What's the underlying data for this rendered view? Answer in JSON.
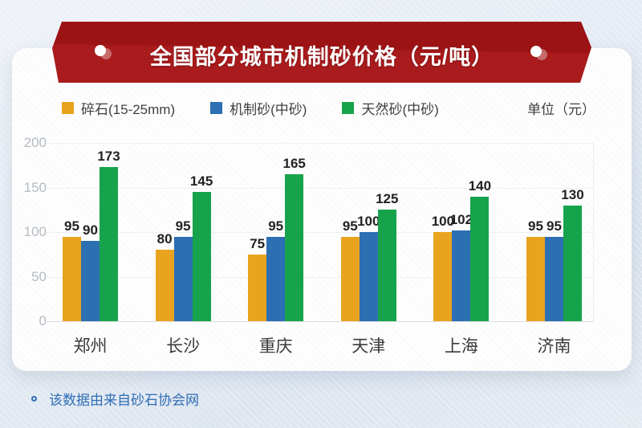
{
  "banner": {
    "title": "全国部分城市机制砂价格（元/吨）"
  },
  "legend": {
    "unit_label": "单位（元）"
  },
  "chart_data": {
    "type": "bar",
    "title": "全国部分城市机制砂价格（元/吨）",
    "categories": [
      "郑州",
      "长沙",
      "重庆",
      "天津",
      "上海",
      "济南"
    ],
    "series": [
      {
        "name": "碎石(15-25mm)",
        "color": "#E8A41F",
        "values": [
          95,
          80,
          75,
          95,
          100,
          95
        ]
      },
      {
        "name": "机制砂(中砂)",
        "color": "#2C6FB2",
        "values": [
          90,
          95,
          95,
          100,
          102,
          95
        ]
      },
      {
        "name": "天然砂(中砂)",
        "color": "#17A34C",
        "values": [
          173,
          145,
          165,
          125,
          140,
          130
        ]
      }
    ],
    "ylim": [
      0,
      200
    ],
    "yticks": [
      0,
      50,
      100,
      150,
      200
    ],
    "unit": "单位（元）",
    "grid": true,
    "legend_position": "top",
    "xlabel": "",
    "ylabel": ""
  },
  "footer": {
    "source_note": "该数据由来自砂石协会网"
  },
  "colors": {
    "banner_red_dark": "#9c1315",
    "banner_red": "#a91b1c",
    "footer_blue": "#2e6db5",
    "tick_gray": "#b5bbc2"
  }
}
